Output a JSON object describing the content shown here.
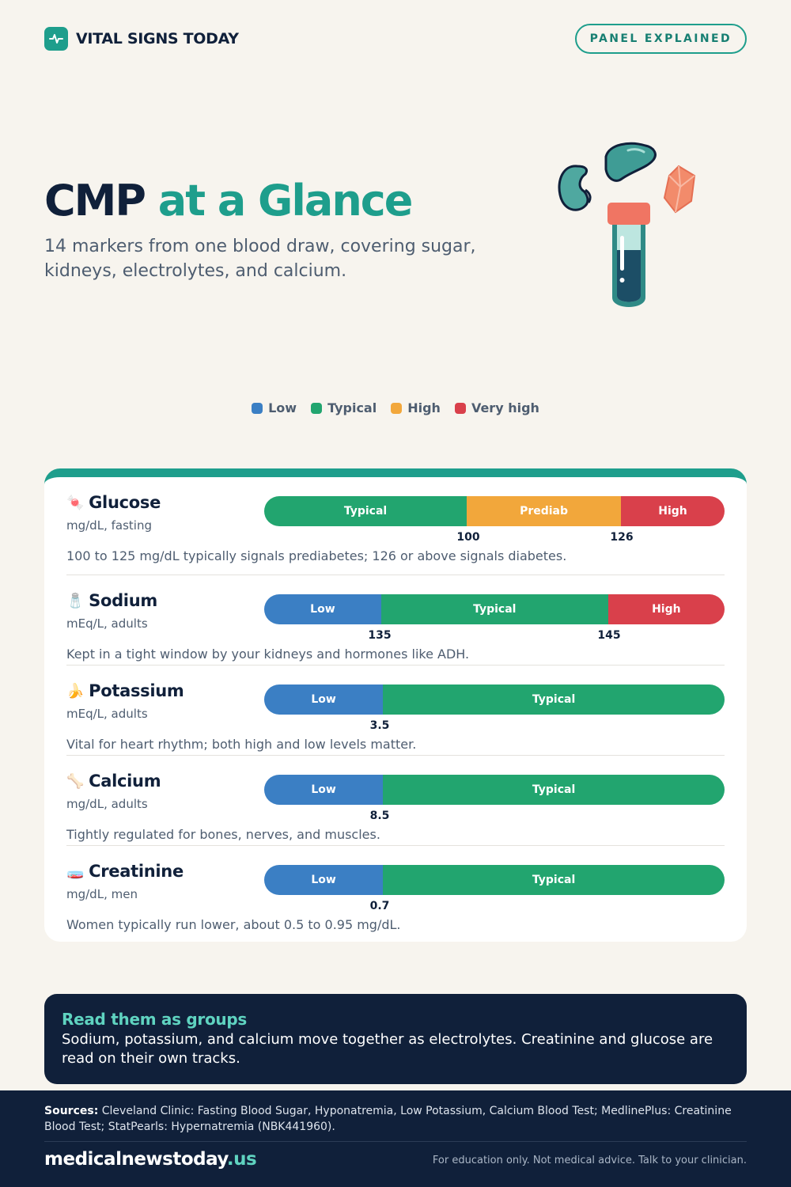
{
  "brand": {
    "name": "VITAL SIGNS TODAY",
    "icon": "pulse-icon",
    "badge": "PANEL EXPLAINED"
  },
  "hero": {
    "title_main": "CMP",
    "title_accent": "at a Glance",
    "subtitle": "14 markers from one blood draw, covering sugar, kidneys, electrolytes, and calcium.",
    "illustration": [
      "kidney-icon",
      "liver-icon",
      "crystal-icon",
      "test-tube-icon"
    ]
  },
  "colors": {
    "low": "#3b7fc4",
    "typical": "#22a56f",
    "high": "#f2a73b",
    "very_high": "#d9404b",
    "accent": "#1e9e8c"
  },
  "legend": [
    {
      "label": "Low",
      "color": "#3b7fc4"
    },
    {
      "label": "Typical",
      "color": "#22a56f"
    },
    {
      "label": "High",
      "color": "#f2a73b"
    },
    {
      "label": "Very high",
      "color": "#d9404b"
    }
  ],
  "markers": [
    {
      "name": "Glucose",
      "icon": "candy-icon",
      "emoji": "🍬",
      "unit": "mg/dL, fasting",
      "note": "100 to 125 mg/dL typically signals prediabetes; 126 or above signals diabetes.",
      "segments": [
        {
          "label": "Typical",
          "color": "#22a56f",
          "share": 0.44
        },
        {
          "label": "Prediab",
          "color": "#f2a73b",
          "share": 0.335
        },
        {
          "label": "High",
          "color": "#d9404b",
          "share": 0.225
        }
      ],
      "ticks": [
        "100",
        "126"
      ]
    },
    {
      "name": "Sodium",
      "icon": "salt-shaker-icon",
      "emoji": "🧂",
      "unit": "mEq/L, adults",
      "note": "Kept in a tight window by your kidneys and hormones like ADH.",
      "segments": [
        {
          "label": "Low",
          "color": "#3b7fc4",
          "share": 0.254
        },
        {
          "label": "Typical",
          "color": "#22a56f",
          "share": 0.493
        },
        {
          "label": "High",
          "color": "#d9404b",
          "share": 0.253
        }
      ],
      "ticks": [
        "135",
        "145"
      ]
    },
    {
      "name": "Potassium",
      "icon": "banana-icon",
      "emoji": "🍌",
      "unit": "mEq/L, adults",
      "note": "Vital for heart rhythm; both high and low levels matter.",
      "segments": [
        {
          "label": "Low",
          "color": "#3b7fc4",
          "share": 0.258
        },
        {
          "label": "Typical",
          "color": "#22a56f",
          "share": 0.742
        }
      ],
      "ticks": [
        "3.5"
      ]
    },
    {
      "name": "Calcium",
      "icon": "bone-icon",
      "emoji": "🦴",
      "unit": "mg/dL, adults",
      "note": "Tightly regulated for bones, nerves, and muscles.",
      "segments": [
        {
          "label": "Low",
          "color": "#3b7fc4",
          "share": 0.258
        },
        {
          "label": "Typical",
          "color": "#22a56f",
          "share": 0.742
        }
      ],
      "ticks": [
        "8.5"
      ]
    },
    {
      "name": "Creatinine",
      "icon": "petri-dish-icon",
      "emoji": "🧫",
      "unit": "mg/dL, men",
      "note": "Women typically run lower, about 0.5 to 0.95 mg/dL.",
      "segments": [
        {
          "label": "Low",
          "color": "#3b7fc4",
          "share": 0.258
        },
        {
          "label": "Typical",
          "color": "#22a56f",
          "share": 0.742
        }
      ],
      "ticks": [
        "0.7"
      ]
    }
  ],
  "callout": {
    "title": "Read them as groups",
    "text": "Sodium, potassium, and calcium move together as electrolytes. Creatinine and glucose are read on their own tracks."
  },
  "footer": {
    "sources_label": "Sources:",
    "sources_text": "Cleveland Clinic: Fasting Blood Sugar, Hyponatremia, Low Potassium, Calcium Blood Test; MedlinePlus: Creatinine Blood Test; StatPearls: Hypernatremia (NBK441960).",
    "site_name": "medicalnewstoday",
    "site_tld": ".us",
    "disclaimer": "For education only. Not medical advice. Talk to your clinician."
  }
}
